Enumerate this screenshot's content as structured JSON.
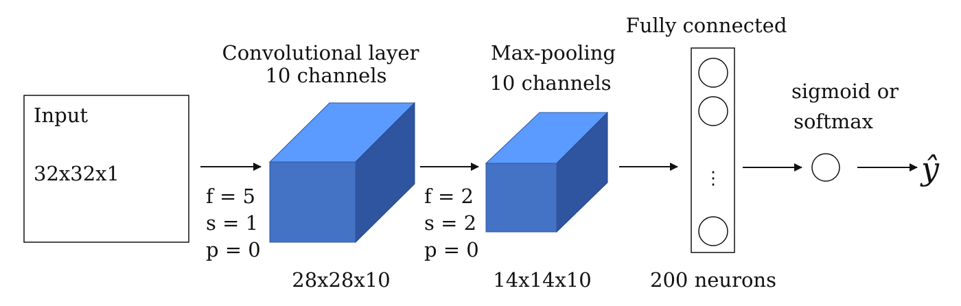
{
  "colors": {
    "cube_front": "#4472c4",
    "cube_top": "#5b9bff",
    "cube_side": "#2f55a0",
    "stroke": "#111111",
    "background": "#ffffff"
  },
  "input": {
    "title": "Input",
    "size": "32x32x1"
  },
  "conv": {
    "title_line1": "Convolutional layer",
    "title_line2": "10 channels",
    "params": [
      "f = 5",
      "s = 1",
      "p = 0"
    ],
    "output_size": "28x28x10"
  },
  "pool": {
    "title_line1": "Max-pooling",
    "title_line2": "10 channels",
    "params": [
      "f = 2",
      "s = 2",
      "p = 0"
    ],
    "output_size": "14x14x10"
  },
  "fc": {
    "title": "Fully connected",
    "ellipsis": "⋮",
    "neurons": "200 neurons"
  },
  "activation": {
    "line1": "sigmoid or",
    "line2": "softmax"
  },
  "output": {
    "label": "ŷ"
  }
}
